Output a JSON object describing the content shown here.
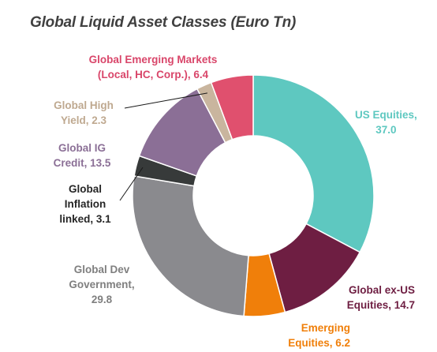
{
  "chart_data": {
    "type": "pie",
    "variant": "donut",
    "title": "Global Liquid Asset Classes (Euro Tn)",
    "legend": "none",
    "slices": [
      {
        "key": "us_equities",
        "lines": [
          "US Equities,",
          "37.0"
        ],
        "value": 37.0,
        "color": "#5ec8c0",
        "label_color": "#5ec8c0"
      },
      {
        "key": "global_ex_us_equities",
        "lines": [
          "Global ex-US",
          "Equities,  14.7"
        ],
        "value": 14.7,
        "color": "#6e1e42",
        "label_color": "#6e1e42"
      },
      {
        "key": "emerging_equities",
        "lines": [
          "Emerging",
          "Equities,  6.2"
        ],
        "value": 6.2,
        "color": "#f07f0a",
        "label_color": "#f07f0a"
      },
      {
        "key": "global_dev_government",
        "lines": [
          "Global Dev",
          "Government,",
          "29.8"
        ],
        "value": 29.8,
        "color": "#8a8a8e",
        "label_color": "#7f7f7f"
      },
      {
        "key": "global_inflation_linked",
        "lines": [
          "Global",
          "Inflation",
          "linked,  3.1"
        ],
        "value": 3.1,
        "color": "#373a3a",
        "label_color": "#262626"
      },
      {
        "key": "global_ig_credit",
        "lines": [
          "Global IG",
          "Credit,  13.5"
        ],
        "value": 13.5,
        "color": "#8b6f96",
        "label_color": "#8b6f96"
      },
      {
        "key": "global_high_yield",
        "lines": [
          "Global High",
          "Yield,  2.3"
        ],
        "value": 2.3,
        "color": "#c9b59e",
        "label_color": "#bfa990"
      },
      {
        "key": "global_emerging_markets",
        "lines": [
          "Global Emerging Markets",
          "(Local, HC, Corp.),  6.4"
        ],
        "value": 6.4,
        "color": "#e0506e",
        "label_color": "#d9466a"
      }
    ]
  }
}
